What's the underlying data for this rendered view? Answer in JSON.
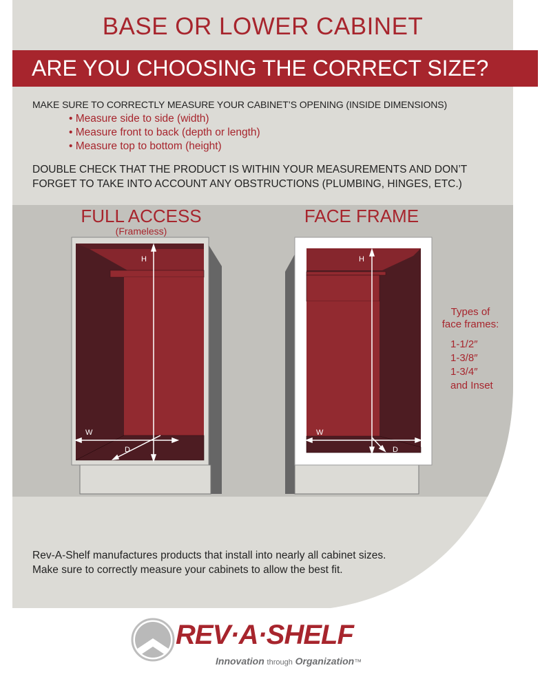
{
  "header": {
    "title": "BASE OR LOWER CABINET",
    "banner": "ARE YOU CHOOSING THE CORRECT SIZE?"
  },
  "instructions": {
    "intro": "MAKE SURE TO CORRECTLY MEASURE YOUR CABINET’S OPENING (INSIDE DIMENSIONS)",
    "bullets": [
      "Measure side to side (width)",
      "Measure front to back (depth or length)",
      "Measure top to bottom (height)"
    ],
    "double_check": "DOUBLE CHECK THAT THE PRODUCT IS WITHIN YOUR MEASUREMENTS AND DON’T FORGET TO TAKE INTO ACCOUNT ANY OBSTRUCTIONS (PLUMBING, HINGES, ETC.)"
  },
  "diagrams": {
    "full_access": {
      "title": "FULL ACCESS",
      "subtitle": "(Frameless)",
      "h": "H",
      "w": "W",
      "d": "D"
    },
    "face_frame": {
      "title": "FACE FRAME",
      "h": "H",
      "w": "W",
      "d": "D"
    },
    "types": {
      "title_line1": "Types of",
      "title_line2": "face frames:",
      "items": [
        "1-1/2″",
        "1-3/8″",
        "1-3/4″",
        "and Inset"
      ]
    }
  },
  "footer": {
    "line1": "Rev-A-Shelf manufactures products that install into nearly all cabinet sizes.",
    "line2": "Make sure to correctly measure your cabinets to allow the best fit."
  },
  "logo": {
    "wordmark": "REV·A·SHELF",
    "tagline_a": "Innovation",
    "tagline_b": "through",
    "tagline_c": "Organization",
    "tm": "™"
  },
  "colors": {
    "brand_red": "#a7252d",
    "panel": "#dcdbd6",
    "band": "#c2c1bc",
    "dark_interior": "#4d1c22",
    "interior": "#922a30"
  }
}
